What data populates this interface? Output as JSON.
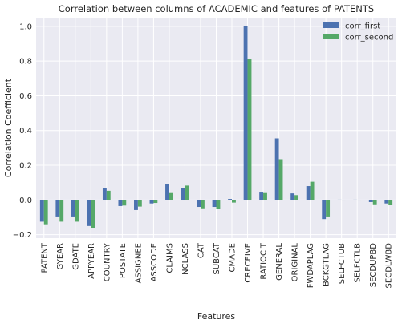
{
  "chart_data": {
    "type": "bar",
    "title": "Correlation between columns of ACADEMIC and features of PATENTS",
    "xlabel": "Features",
    "ylabel": "Correlation Coefficient",
    "ylim": [
      -0.22,
      1.05
    ],
    "yticks": [
      -0.2,
      0.0,
      0.2,
      0.4,
      0.6,
      0.8,
      1.0
    ],
    "ytick_labels": [
      "−0.2",
      "0.0",
      "0.2",
      "0.4",
      "0.6",
      "0.8",
      "1.0"
    ],
    "grid": true,
    "legend_position": "top-right",
    "categories": [
      "PATENT",
      "GYEAR",
      "GDATE",
      "APPYEAR",
      "COUNTRY",
      "POSTATE",
      "ASSIGNEE",
      "ASSCODE",
      "CLAIMS",
      "NCLASS",
      "CAT",
      "SUBCAT",
      "CMADE",
      "CRECEIVE",
      "RATIOCIT",
      "GENERAL",
      "ORIGINAL",
      "FWDAPLAG",
      "BCKGTLAG",
      "SELFCTUB",
      "SELFCTLB",
      "SECDUPBD",
      "SECDLWBD"
    ],
    "series": [
      {
        "name": "corr_first",
        "color": "#4c72b0",
        "values": [
          -0.125,
          -0.095,
          -0.095,
          -0.15,
          0.068,
          -0.035,
          -0.058,
          -0.02,
          0.09,
          0.068,
          -0.04,
          -0.04,
          0.006,
          1.0,
          0.043,
          0.355,
          0.038,
          0.08,
          -0.11,
          0.002,
          0.002,
          -0.012,
          -0.02
        ]
      },
      {
        "name": "corr_second",
        "color": "#55a868",
        "values": [
          -0.14,
          -0.125,
          -0.125,
          -0.16,
          0.053,
          -0.032,
          -0.038,
          -0.017,
          0.04,
          0.083,
          -0.048,
          -0.05,
          -0.015,
          0.812,
          0.04,
          0.235,
          0.028,
          0.105,
          -0.095,
          -0.003,
          -0.003,
          -0.025,
          -0.03
        ]
      }
    ]
  }
}
